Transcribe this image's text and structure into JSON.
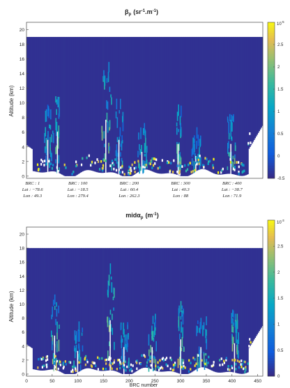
{
  "chart_data": [
    {
      "type": "heatmap",
      "title": "β_p (sr⁻¹.m⁻¹)",
      "title_main": "β",
      "title_sub": "p",
      "title_units": "(sr",
      "title_exp1": "-1",
      "title_mid": ".m",
      "title_exp2": "-1",
      "title_close": ")",
      "ylabel": "Altitude (km)",
      "xlabel": "",
      "ylim": [
        -0.3,
        21
      ],
      "yticks": [
        "0",
        "2",
        "4",
        "6",
        "8",
        "10",
        "12",
        "14",
        "16",
        "18",
        "20"
      ],
      "x_range": [
        0,
        460
      ],
      "colorbar": {
        "multiplier": "10",
        "multiplier_exp": "-5",
        "ticks": [
          "2.5",
          "2",
          "1.5",
          "1",
          "0.5",
          "0",
          "-0.5"
        ],
        "range": [
          -0.5,
          3
        ],
        "colormap": "parula"
      },
      "top_boundary_km": 19,
      "profile_annotations": [
        {
          "brc": "BRC : 1",
          "lat": "Lat : −78.6",
          "lon": "Lon : 49.3"
        },
        {
          "brc": "BRC : 100",
          "lat": "Lat : −18.5",
          "lon": "Lon : 279.4"
        },
        {
          "brc": "BRC : 200",
          "lat": "Lat : 60.4",
          "lon": "Lon : 262.3"
        },
        {
          "brc": "BRC : 300",
          "lat": "Lat : 40.3",
          "lon": "Lon : 88"
        },
        {
          "brc": "BRC : 400",
          "lat": "Lat : −38.7",
          "lon": "Lon : 71.9"
        }
      ],
      "annotation_x": [
        1,
        100,
        200,
        300,
        400
      ]
    },
    {
      "type": "heatmap",
      "title": "midα_p (m⁻¹)",
      "title_main": "midα",
      "title_sub": "p",
      "title_units": "(m",
      "title_exp1": "-1",
      "title_close": ")",
      "ylabel": "Altitude (km)",
      "xlabel": "BRC number",
      "ylim": [
        -0.3,
        21
      ],
      "yticks": [
        "0",
        "2",
        "4",
        "6",
        "8",
        "10",
        "12",
        "14",
        "16",
        "18",
        "20"
      ],
      "xticks": [
        "0",
        "50",
        "100",
        "150",
        "200",
        "250",
        "300",
        "350",
        "400",
        "450"
      ],
      "x_range": [
        0,
        460
      ],
      "colorbar": {
        "multiplier": "10",
        "multiplier_exp": "-3",
        "ticks": [
          "2.5",
          "2",
          "1.5",
          "1",
          "0.5",
          "0"
        ],
        "range": [
          0,
          3
        ],
        "colormap": "parula"
      },
      "top_boundary_km": 18
    }
  ]
}
